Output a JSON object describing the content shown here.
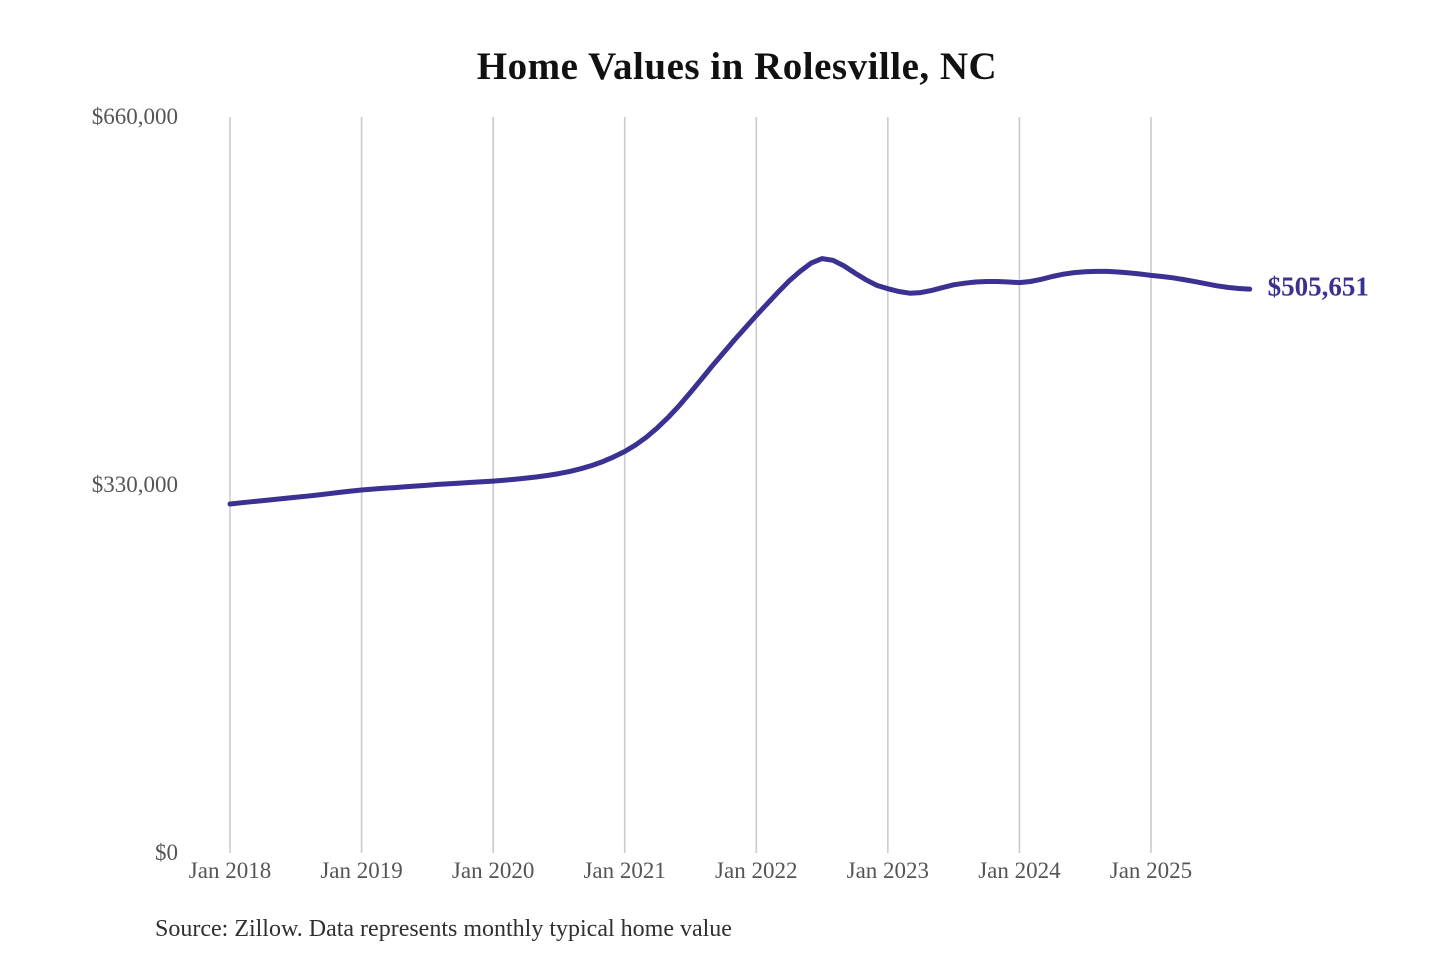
{
  "title": "Home Values in Rolesville, NC",
  "current_value_label": "$505,651",
  "source_note": "Source: Zillow. Data represents monthly typical home value",
  "colors": {
    "background": "#ffffff",
    "line": "#3a3193",
    "grid": "#cbcbcb",
    "axis_text": "#555555",
    "title_text": "#111111",
    "source_text": "#303030",
    "value_label_text": "#3a3193"
  },
  "chart_data": {
    "type": "line",
    "title": "Home Values in Rolesville, NC",
    "xlabel": "",
    "ylabel": "",
    "ylim": [
      0,
      660000
    ],
    "y_tick_values": [
      0,
      330000,
      660000
    ],
    "y_tick_labels": [
      "$0",
      "$330,000",
      "$660,000"
    ],
    "x_tick_labels": [
      "Jan 2018",
      "Jan 2019",
      "Jan 2020",
      "Jan 2021",
      "Jan 2022",
      "Jan 2023",
      "Jan 2024",
      "Jan 2025"
    ],
    "grid": "vertical",
    "legend": "none",
    "annotation": {
      "text": "$505,651",
      "value": 505651,
      "position": "line-end"
    },
    "source": "Source: Zillow. Data represents monthly typical home value",
    "series": [
      {
        "name": "Monthly typical home value (USD)",
        "x_start": "2018-01",
        "x_end": "2025-10",
        "frequency": "monthly",
        "values": [
          313000,
          314000,
          315000,
          316000,
          317000,
          318000,
          319000,
          320000,
          321000,
          322200,
          323400,
          324500,
          325500,
          326300,
          327000,
          327700,
          328400,
          329100,
          329800,
          330500,
          331100,
          331700,
          332300,
          332900,
          333500,
          334300,
          335200,
          336200,
          337300,
          338600,
          340200,
          342200,
          344600,
          347500,
          351000,
          355200,
          360000,
          366000,
          373000,
          381500,
          391000,
          401500,
          413000,
          425000,
          437000,
          448500,
          460000,
          471000,
          482000,
          492500,
          503000,
          513000,
          521500,
          529000,
          533000,
          531500,
          526500,
          520000,
          514000,
          509000,
          506000,
          503500,
          502000,
          502500,
          504500,
          507000,
          509500,
          511000,
          512000,
          512500,
          512500,
          512000,
          511500,
          512500,
          514500,
          517000,
          519000,
          520500,
          521200,
          521500,
          521500,
          521000,
          520200,
          519200,
          518000,
          517000,
          515800,
          514200,
          512400,
          510500,
          508600,
          507200,
          506200,
          505651
        ]
      }
    ]
  }
}
